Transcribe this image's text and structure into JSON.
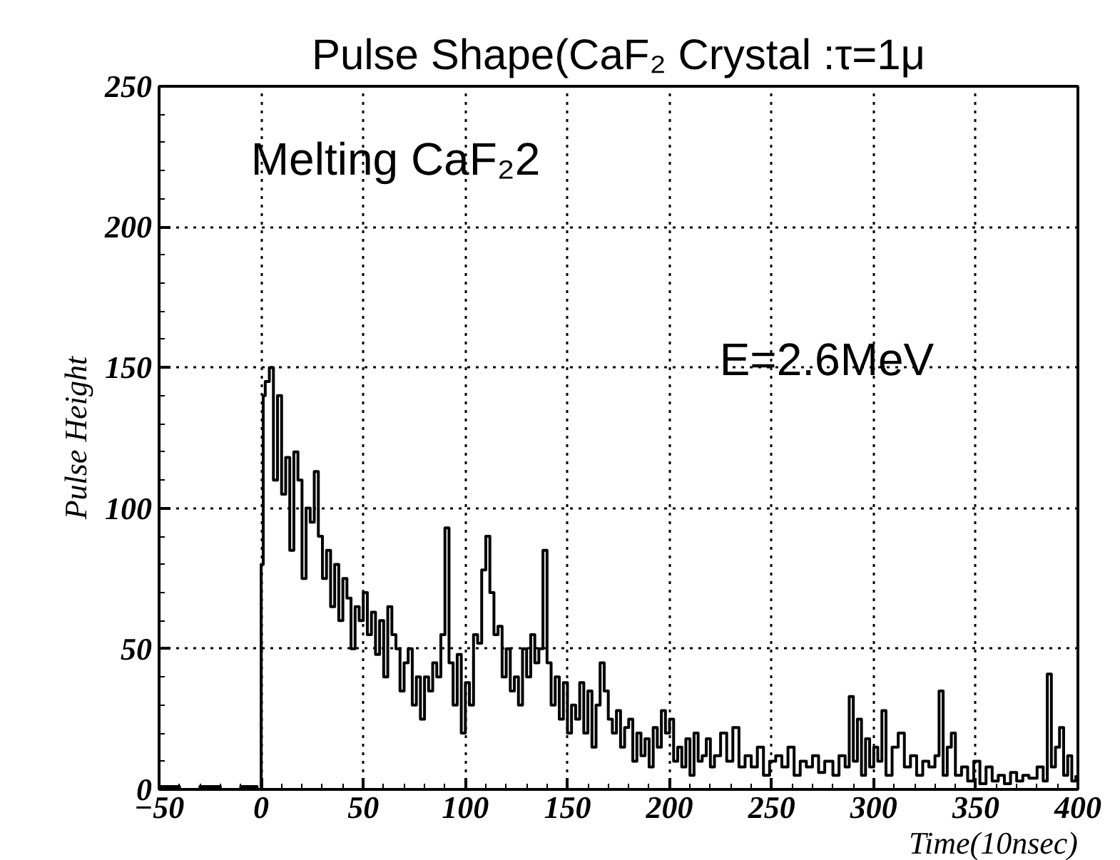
{
  "chart_data": {
    "type": "step",
    "title": "Pulse Shape(CaF₂ Crystal :τ=1μ",
    "xlabel": "Time(10nsec)",
    "ylabel": "Pulse Height",
    "annotations": [
      "Melting CaF₂2",
      "E=2.6MeV"
    ],
    "xlim": [
      -50,
      400
    ],
    "ylim": [
      0,
      250
    ],
    "xticks": [
      -50,
      0,
      50,
      100,
      150,
      200,
      250,
      300,
      350,
      400
    ],
    "yticks": [
      0,
      50,
      100,
      150,
      200,
      250
    ],
    "grid": true,
    "marker": "none",
    "line_style": "solid",
    "series": [
      {
        "color": "#000000",
        "x": [
          -50,
          -40,
          -30,
          -20,
          -10,
          -2,
          0,
          1,
          2,
          4,
          6,
          8,
          10,
          12,
          14,
          16,
          18,
          20,
          22,
          24,
          26,
          28,
          30,
          32,
          34,
          36,
          38,
          40,
          42,
          44,
          46,
          48,
          50,
          52,
          54,
          56,
          58,
          60,
          62,
          64,
          66,
          68,
          70,
          72,
          74,
          76,
          78,
          80,
          82,
          84,
          86,
          88,
          90,
          92,
          94,
          96,
          98,
          100,
          102,
          104,
          106,
          108,
          110,
          112,
          114,
          116,
          118,
          120,
          122,
          124,
          126,
          128,
          130,
          132,
          134,
          136,
          138,
          140,
          142,
          144,
          146,
          148,
          150,
          152,
          154,
          156,
          158,
          160,
          162,
          164,
          166,
          168,
          170,
          172,
          174,
          176,
          178,
          180,
          182,
          184,
          186,
          188,
          190,
          192,
          194,
          196,
          198,
          200,
          202,
          204,
          206,
          208,
          210,
          212,
          214,
          216,
          218,
          220,
          222,
          225,
          228,
          231,
          234,
          237,
          240,
          243,
          246,
          249,
          252,
          255,
          258,
          261,
          264,
          267,
          270,
          273,
          276,
          280,
          283,
          286,
          288,
          290,
          292,
          294,
          296,
          298,
          300,
          302,
          304,
          306,
          309,
          312,
          315,
          318,
          321,
          324,
          327,
          330,
          332,
          334,
          336,
          338,
          340,
          343,
          346,
          349,
          352,
          355,
          358,
          361,
          364,
          367,
          370,
          373,
          376,
          380,
          383,
          385,
          387,
          389,
          391,
          393,
          395,
          397,
          399
        ],
        "values": [
          1,
          0,
          1,
          0,
          1,
          0,
          80,
          140,
          145,
          150,
          110,
          140,
          105,
          118,
          85,
          120,
          110,
          75,
          100,
          95,
          113,
          90,
          75,
          85,
          65,
          80,
          60,
          75,
          68,
          50,
          65,
          60,
          70,
          55,
          63,
          48,
          60,
          40,
          65,
          55,
          50,
          35,
          45,
          50,
          30,
          40,
          25,
          40,
          35,
          45,
          40,
          55,
          93,
          45,
          30,
          48,
          20,
          38,
          30,
          55,
          52,
          78,
          90,
          70,
          55,
          58,
          40,
          50,
          35,
          40,
          30,
          50,
          40,
          55,
          45,
          50,
          85,
          45,
          30,
          40,
          25,
          38,
          20,
          30,
          25,
          38,
          20,
          35,
          15,
          30,
          45,
          35,
          25,
          20,
          28,
          15,
          22,
          25,
          10,
          20,
          12,
          18,
          8,
          22,
          15,
          28,
          20,
          25,
          10,
          15,
          8,
          18,
          5,
          20,
          10,
          12,
          18,
          8,
          12,
          20,
          10,
          22,
          8,
          12,
          8,
          15,
          5,
          10,
          12,
          8,
          15,
          5,
          10,
          8,
          12,
          6,
          10,
          5,
          12,
          8,
          33,
          10,
          25,
          5,
          18,
          8,
          15,
          10,
          28,
          5,
          15,
          20,
          8,
          12,
          5,
          10,
          8,
          12,
          35,
          5,
          15,
          20,
          5,
          8,
          3,
          10,
          2,
          8,
          3,
          5,
          2,
          6,
          3,
          5,
          4,
          8,
          3,
          41,
          8,
          15,
          22,
          5,
          12,
          3,
          5
        ]
      }
    ]
  }
}
